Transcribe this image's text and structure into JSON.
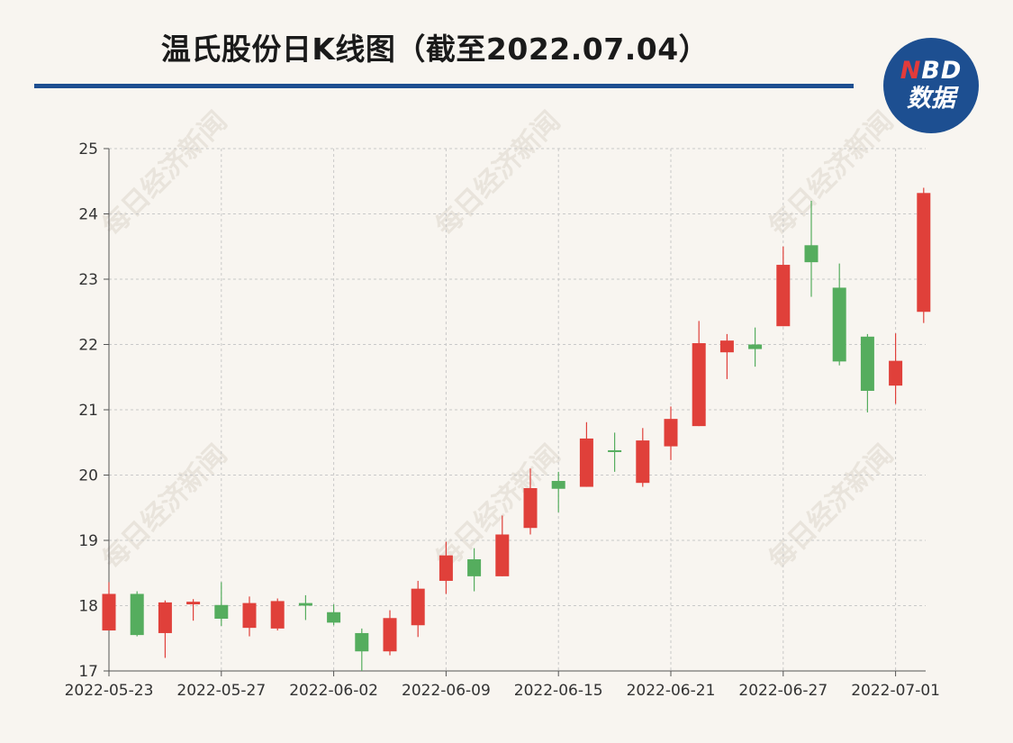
{
  "header": {
    "title": "温氏股份日K线图（截至2022.07.04）",
    "logo_top": "NBD",
    "logo_bottom": "数据"
  },
  "watermark": "每日经济新闻",
  "colors": {
    "up": "#e0403a",
    "down": "#55ad5e",
    "accent": "#1d4f91",
    "grid": "#c9c9c9",
    "axis": "#555555"
  },
  "chart_data": {
    "type": "candlestick",
    "title": "温氏股份日K线图（截至2022.07.04）",
    "ylim": [
      17,
      25
    ],
    "yticks": [
      17,
      18,
      19,
      20,
      21,
      22,
      23,
      24,
      25
    ],
    "xlabels": [
      "2022-05-23",
      "2022-05-27",
      "2022-06-02",
      "2022-06-09",
      "2022-06-15",
      "2022-06-21",
      "2022-06-27",
      "2022-07-01"
    ],
    "grid": true,
    "candles": [
      {
        "open": 17.62,
        "close": 18.18,
        "high": 18.36,
        "low": 17.62
      },
      {
        "open": 18.18,
        "close": 17.55,
        "high": 18.22,
        "low": 17.53
      },
      {
        "open": 17.58,
        "close": 18.05,
        "high": 18.08,
        "low": 17.2
      },
      {
        "open": 18.02,
        "close": 18.06,
        "high": 18.1,
        "low": 17.77
      },
      {
        "open": 18.01,
        "close": 17.8,
        "high": 18.36,
        "low": 17.69
      },
      {
        "open": 17.66,
        "close": 18.04,
        "high": 18.14,
        "low": 17.53
      },
      {
        "open": 17.65,
        "close": 18.07,
        "high": 18.11,
        "low": 17.62
      },
      {
        "open": 18.04,
        "close": 18.0,
        "high": 18.16,
        "low": 17.78
      },
      {
        "open": 17.9,
        "close": 17.74,
        "high": 18.02,
        "low": 17.7
      },
      {
        "open": 17.58,
        "close": 17.3,
        "high": 17.65,
        "low": 17.0
      },
      {
        "open": 17.3,
        "close": 17.81,
        "high": 17.93,
        "low": 17.24
      },
      {
        "open": 17.7,
        "close": 18.26,
        "high": 18.38,
        "low": 17.52
      },
      {
        "open": 18.38,
        "close": 18.77,
        "high": 18.98,
        "low": 18.18
      },
      {
        "open": 18.71,
        "close": 18.45,
        "high": 18.88,
        "low": 18.22
      },
      {
        "open": 18.45,
        "close": 19.09,
        "high": 19.38,
        "low": 18.45
      },
      {
        "open": 19.19,
        "close": 19.8,
        "high": 20.1,
        "low": 19.09
      },
      {
        "open": 19.91,
        "close": 19.79,
        "high": 20.05,
        "low": 19.43
      },
      {
        "open": 19.82,
        "close": 20.56,
        "high": 20.81,
        "low": 19.82
      },
      {
        "open": 20.38,
        "close": 20.36,
        "high": 20.65,
        "low": 20.05
      },
      {
        "open": 19.88,
        "close": 20.53,
        "high": 20.72,
        "low": 19.82
      },
      {
        "open": 20.44,
        "close": 20.86,
        "high": 21.05,
        "low": 20.23
      },
      {
        "open": 20.75,
        "close": 22.02,
        "high": 22.36,
        "low": 20.75
      },
      {
        "open": 21.88,
        "close": 22.06,
        "high": 22.16,
        "low": 21.47
      },
      {
        "open": 22.0,
        "close": 21.93,
        "high": 22.26,
        "low": 21.66
      },
      {
        "open": 22.28,
        "close": 23.22,
        "high": 23.5,
        "low": 22.28
      },
      {
        "open": 23.52,
        "close": 23.26,
        "high": 24.2,
        "low": 22.73
      },
      {
        "open": 22.87,
        "close": 21.74,
        "high": 23.24,
        "low": 21.68
      },
      {
        "open": 22.12,
        "close": 21.29,
        "high": 22.16,
        "low": 20.96
      },
      {
        "open": 21.37,
        "close": 21.75,
        "high": 22.17,
        "low": 21.09
      },
      {
        "open": 22.5,
        "close": 24.32,
        "high": 24.4,
        "low": 22.33
      }
    ]
  }
}
